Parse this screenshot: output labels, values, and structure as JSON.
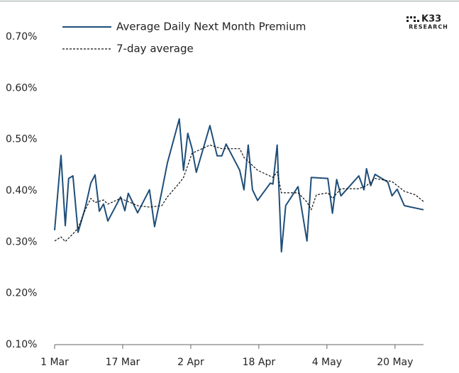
{
  "logo": {
    "brand": "K33",
    "sub": "RESEARCH"
  },
  "chart_data": {
    "type": "line",
    "xlim": [
      0,
      86.7
    ],
    "xticks": [
      {
        "value": 0,
        "label": "1 Mar"
      },
      {
        "value": 16,
        "label": "17 Mar"
      },
      {
        "value": 32,
        "label": "2 Apr"
      },
      {
        "value": 48,
        "label": "18 Apr"
      },
      {
        "value": 64,
        "label": "4 May"
      },
      {
        "value": 80,
        "label": "20 May"
      }
    ],
    "ylim": [
      0.1,
      0.7
    ],
    "yticks": [
      {
        "value": 0.1,
        "label": "0.10%"
      },
      {
        "value": 0.2,
        "label": "0.20%"
      },
      {
        "value": 0.3,
        "label": "0.30%"
      },
      {
        "value": 0.4,
        "label": "0.40%"
      },
      {
        "value": 0.5,
        "label": "0.50%"
      },
      {
        "value": 0.6,
        "label": "0.60%"
      },
      {
        "value": 0.7,
        "label": "0.70%"
      }
    ],
    "series": [
      {
        "name": "Average Daily Next Month Premium",
        "color": "#1f4e79",
        "dashed": false,
        "x": [
          0,
          1.5,
          2.5,
          3.3,
          4.3,
          5.5,
          7.2,
          8.5,
          9.5,
          10.5,
          11.5,
          12.5,
          15.5,
          16.5,
          17.3,
          19.5,
          22.3,
          23.5,
          25.2,
          26.5,
          29.3,
          30.3,
          31.3,
          32.3,
          33.3,
          36.5,
          38.2,
          39.3,
          40.3,
          43.5,
          44.5,
          45.5,
          46.5,
          47.7,
          50.7,
          51.3,
          52.3,
          53.3,
          54.3,
          57.2,
          59.3,
          60.3,
          64.2,
          65.3,
          66.3,
          67.3,
          71.5,
          72.7,
          73.3,
          74.3,
          75.3,
          78.3,
          79.3,
          80.5,
          82.2,
          86.7
        ],
        "values": [
          0.323,
          0.469,
          0.332,
          0.424,
          0.429,
          0.319,
          0.367,
          0.415,
          0.431,
          0.36,
          0.374,
          0.341,
          0.388,
          0.361,
          0.395,
          0.357,
          0.402,
          0.33,
          0.399,
          0.454,
          0.54,
          0.44,
          0.512,
          0.482,
          0.436,
          0.527,
          0.468,
          0.468,
          0.491,
          0.44,
          0.402,
          0.489,
          0.402,
          0.381,
          0.415,
          0.413,
          0.489,
          0.281,
          0.371,
          0.408,
          0.302,
          0.426,
          0.424,
          0.356,
          0.422,
          0.39,
          0.429,
          0.402,
          0.443,
          0.41,
          0.432,
          0.417,
          0.39,
          0.403,
          0.371,
          0.363
        ]
      },
      {
        "name": "7-day average",
        "color": "#111111",
        "dashed": true,
        "x": [
          0,
          1.5,
          2.5,
          4.3,
          5.5,
          7.2,
          8.5,
          9.5,
          11.5,
          12.5,
          15.5,
          19.5,
          22.3,
          25.2,
          26.5,
          29.3,
          30.3,
          32.3,
          36.5,
          39.3,
          43.5,
          44.5,
          47.7,
          51.3,
          52.3,
          53.3,
          57.2,
          59.3,
          60.3,
          61.5,
          64.2,
          65.3,
          67.3,
          71.5,
          73.3,
          75.3,
          79.3,
          82.2,
          84.8,
          86.7
        ],
        "values": [
          0.302,
          0.31,
          0.301,
          0.316,
          0.327,
          0.363,
          0.385,
          0.377,
          0.382,
          0.374,
          0.385,
          0.371,
          0.368,
          0.371,
          0.388,
          0.415,
          0.426,
          0.473,
          0.489,
          0.482,
          0.482,
          0.465,
          0.44,
          0.426,
          0.437,
          0.396,
          0.396,
          0.378,
          0.363,
          0.392,
          0.396,
          0.385,
          0.404,
          0.404,
          0.41,
          0.424,
          0.418,
          0.399,
          0.392,
          0.379
        ]
      }
    ]
  }
}
